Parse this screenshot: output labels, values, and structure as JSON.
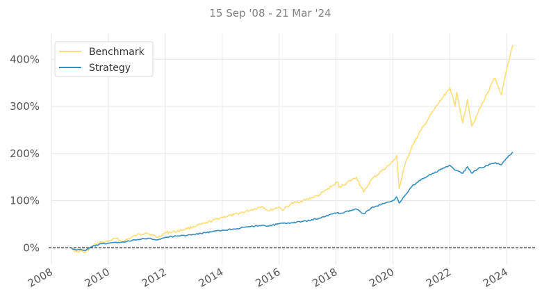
{
  "chart_data": {
    "type": "line",
    "title": "15 Sep '08 - 21 Mar '24",
    "xlabel": "",
    "ylabel": "",
    "x_range": [
      "2008-01-01",
      "2024-12-31"
    ],
    "ylim": [
      -35,
      455
    ],
    "x_ticks": [
      "2008",
      "2010",
      "2012",
      "2014",
      "2016",
      "2018",
      "2020",
      "2022",
      "2024"
    ],
    "y_ticks": [
      0,
      100,
      200,
      300,
      400
    ],
    "y_tick_labels": [
      "0%",
      "100%",
      "200%",
      "300%",
      "400%"
    ],
    "grid": true,
    "baseline": 0,
    "legend_position": "top-left",
    "series": [
      {
        "name": "Benchmark",
        "color": "#fedd78",
        "points": [
          [
            "2008-09-15",
            0
          ],
          [
            "2008-10-15",
            -5
          ],
          [
            "2008-11-20",
            -9
          ],
          [
            "2009-01-15",
            -6
          ],
          [
            "2009-03-09",
            -11
          ],
          [
            "2009-06-01",
            3
          ],
          [
            "2009-09-01",
            10
          ],
          [
            "2010-01-01",
            14
          ],
          [
            "2010-04-15",
            20
          ],
          [
            "2010-07-01",
            13
          ],
          [
            "2011-01-01",
            27
          ],
          [
            "2011-04-30",
            32
          ],
          [
            "2011-10-03",
            22
          ],
          [
            "2012-01-01",
            32
          ],
          [
            "2012-06-01",
            35
          ],
          [
            "2013-01-01",
            45
          ],
          [
            "2013-06-01",
            52
          ],
          [
            "2014-01-01",
            65
          ],
          [
            "2014-06-01",
            70
          ],
          [
            "2015-01-01",
            80
          ],
          [
            "2015-06-01",
            88
          ],
          [
            "2015-08-25",
            78
          ],
          [
            "2016-01-01",
            87
          ],
          [
            "2016-02-11",
            80
          ],
          [
            "2016-06-01",
            93
          ],
          [
            "2017-01-01",
            103
          ],
          [
            "2017-06-01",
            112
          ],
          [
            "2018-01-26",
            140
          ],
          [
            "2018-02-08",
            128
          ],
          [
            "2018-09-20",
            150
          ],
          [
            "2018-12-24",
            118
          ],
          [
            "2019-04-01",
            145
          ],
          [
            "2019-12-31",
            182
          ],
          [
            "2020-02-19",
            196
          ],
          [
            "2020-03-23",
            125
          ],
          [
            "2020-06-01",
            175
          ],
          [
            "2020-09-01",
            215
          ],
          [
            "2021-01-01",
            250
          ],
          [
            "2021-06-01",
            290
          ],
          [
            "2022-01-03",
            340
          ],
          [
            "2022-03-08",
            300
          ],
          [
            "2022-04-01",
            330
          ],
          [
            "2022-06-16",
            265
          ],
          [
            "2022-08-16",
            315
          ],
          [
            "2022-10-12",
            258
          ],
          [
            "2023-01-01",
            288
          ],
          [
            "2023-07-31",
            360
          ],
          [
            "2023-10-27",
            325
          ],
          [
            "2023-12-29",
            375
          ],
          [
            "2024-03-21",
            430
          ]
        ]
      },
      {
        "name": "Strategy",
        "color": "#348dc1",
        "points": [
          [
            "2008-09-15",
            0
          ],
          [
            "2008-10-15",
            -3
          ],
          [
            "2008-11-20",
            -5
          ],
          [
            "2009-01-15",
            -3
          ],
          [
            "2009-03-09",
            -6
          ],
          [
            "2009-06-01",
            2
          ],
          [
            "2009-09-01",
            7
          ],
          [
            "2010-01-01",
            10
          ],
          [
            "2010-07-01",
            12
          ],
          [
            "2011-01-01",
            17
          ],
          [
            "2011-06-01",
            20
          ],
          [
            "2011-10-03",
            17
          ],
          [
            "2012-01-01",
            22
          ],
          [
            "2012-06-01",
            25
          ],
          [
            "2013-01-01",
            28
          ],
          [
            "2013-06-01",
            32
          ],
          [
            "2014-01-01",
            37
          ],
          [
            "2014-06-01",
            40
          ],
          [
            "2015-01-01",
            45
          ],
          [
            "2015-06-01",
            48
          ],
          [
            "2015-08-25",
            46
          ],
          [
            "2016-01-01",
            51
          ],
          [
            "2016-06-01",
            53
          ],
          [
            "2017-01-01",
            57
          ],
          [
            "2017-06-01",
            63
          ],
          [
            "2018-01-26",
            75
          ],
          [
            "2018-02-08",
            72
          ],
          [
            "2018-09-20",
            82
          ],
          [
            "2018-12-24",
            72
          ],
          [
            "2019-04-01",
            85
          ],
          [
            "2019-12-31",
            100
          ],
          [
            "2020-02-19",
            108
          ],
          [
            "2020-03-23",
            95
          ],
          [
            "2020-06-01",
            110
          ],
          [
            "2020-09-01",
            130
          ],
          [
            "2021-01-01",
            145
          ],
          [
            "2021-06-01",
            158
          ],
          [
            "2022-01-03",
            175
          ],
          [
            "2022-03-08",
            165
          ],
          [
            "2022-06-16",
            158
          ],
          [
            "2022-08-16",
            172
          ],
          [
            "2022-10-12",
            158
          ],
          [
            "2023-01-01",
            168
          ],
          [
            "2023-07-31",
            180
          ],
          [
            "2023-10-27",
            176
          ],
          [
            "2023-12-29",
            190
          ],
          [
            "2024-03-21",
            203
          ]
        ]
      }
    ]
  }
}
